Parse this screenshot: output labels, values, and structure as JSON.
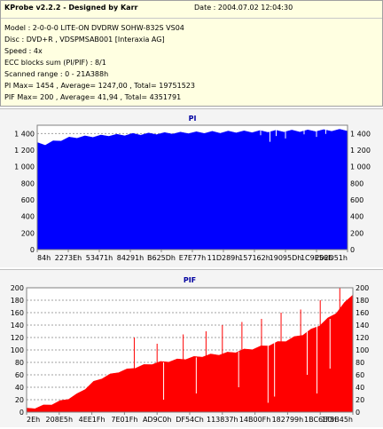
{
  "header": {
    "title": "KProbe v2.2.2 - Designed by Karr",
    "date": "Date : 2004.07.02 12:04:30",
    "lines": [
      "Model : 2-0-0-0 LITE-ON DVDRW SOHW-832S  VS04",
      "Disc : DVD+R , VDSPMSAB001 [Interaxia AG]",
      "Speed : 4x",
      "ECC blocks sum (PI/PIF) : 8/1",
      "Scanned range : 0 - 21A388h",
      "PI Max= 1454 , Average= 1247,00 , Total= 19751523",
      "PIF Max= 200 , Average= 41,94 , Total= 4351791"
    ]
  },
  "colors": {
    "pi_fill": "#0000ff",
    "pif_fill": "#ff0000",
    "title": "#0000a0"
  },
  "chart_data": [
    {
      "type": "area",
      "title": "PI",
      "ylim": [
        0,
        1500
      ],
      "yticks": [
        0,
        200,
        400,
        600,
        800,
        1000,
        1200,
        1400
      ],
      "ytick_labels": [
        "0",
        "200",
        "400",
        "600",
        "800",
        "1 000",
        "1 200",
        "1 400"
      ],
      "xticks": [
        "84h",
        "2273Eh",
        "53471h",
        "84291h",
        "B625Dh",
        "E7E77h",
        "11D289h",
        "157162h",
        "19095Dh",
        "1C9E56h",
        "202D51h"
      ],
      "grid": true,
      "series": [
        {
          "values": [
            1280,
            1270,
            1300,
            1320,
            1345,
            1355,
            1360,
            1365,
            1370,
            1378,
            1380,
            1385,
            1390,
            1392,
            1395,
            1398,
            1400,
            1405,
            1405,
            1410,
            1410,
            1412,
            1415,
            1415,
            1418,
            1420,
            1420,
            1422,
            1425,
            1425,
            1428,
            1428,
            1430,
            1430,
            1432,
            1435,
            1435,
            1438,
            1440,
            1440
          ]
        }
      ],
      "dips": [
        [
          0.72,
          1380
        ],
        [
          0.75,
          1300
        ],
        [
          0.77,
          1370
        ],
        [
          0.8,
          1340
        ],
        [
          0.86,
          1390
        ],
        [
          0.9,
          1360
        ],
        [
          0.93,
          1395
        ]
      ]
    },
    {
      "type": "area",
      "title": "PIF",
      "ylim": [
        0,
        200
      ],
      "yticks": [
        0,
        20,
        40,
        60,
        80,
        100,
        120,
        140,
        160,
        180,
        200
      ],
      "ytick_labels": [
        "0",
        "20",
        "40",
        "60",
        "80",
        "100",
        "120",
        "140",
        "160",
        "180",
        "200"
      ],
      "xticks": [
        "2Eh",
        "208E5h",
        "4EE1Fh",
        "7E01Fh",
        "AD9C0h",
        "DF54Ch",
        "113837h",
        "14B00Fh",
        "182799h",
        "1BC6E0h",
        "1F5B45h"
      ],
      "grid": true,
      "series": [
        {
          "values": [
            5,
            7,
            10,
            13,
            17,
            22,
            28,
            38,
            48,
            55,
            60,
            65,
            68,
            72,
            75,
            78,
            80,
            82,
            84,
            86,
            88,
            90,
            92,
            93,
            95,
            97,
            100,
            102,
            105,
            108,
            112,
            115,
            120,
            125,
            132,
            140,
            150,
            160,
            175,
            190
          ]
        }
      ],
      "spikes": [
        [
          0.33,
          120
        ],
        [
          0.4,
          110
        ],
        [
          0.48,
          125
        ],
        [
          0.55,
          130
        ],
        [
          0.6,
          140
        ],
        [
          0.66,
          145
        ],
        [
          0.72,
          150
        ],
        [
          0.78,
          160
        ],
        [
          0.84,
          165
        ],
        [
          0.9,
          180
        ],
        [
          0.96,
          200
        ]
      ],
      "drops": [
        [
          0.42,
          20
        ],
        [
          0.52,
          30
        ],
        [
          0.65,
          40
        ],
        [
          0.74,
          15
        ],
        [
          0.76,
          25
        ],
        [
          0.86,
          60
        ],
        [
          0.89,
          30
        ],
        [
          0.93,
          70
        ]
      ]
    }
  ]
}
